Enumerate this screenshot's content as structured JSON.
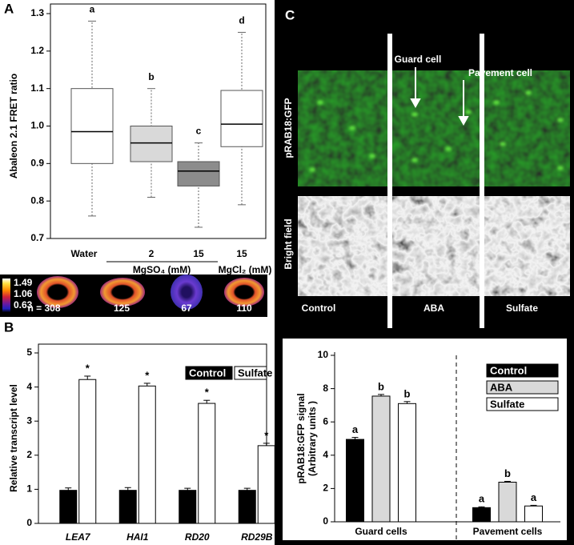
{
  "chart_data": [
    {
      "type": "box",
      "panel": "A",
      "ylabel": "Abaleon 2.1 FRET ratio",
      "ylim": [
        0.7,
        1.3
      ],
      "yticks": [
        0.7,
        0.8,
        0.9,
        {
          "value": 1,
          "label": "1.0"
        },
        1.1,
        1.2,
        1.3
      ],
      "categories": [
        "Water",
        "2",
        "15",
        "15"
      ],
      "group_labels": [
        "MgSO₄ (mM)",
        "MgCl₂ (mM)"
      ],
      "boxes": [
        {
          "low": 0.76,
          "q1": 0.9,
          "median": 0.985,
          "q3": 1.1,
          "high": 1.28,
          "color": "#ffffff"
        },
        {
          "low": 0.81,
          "q1": 0.905,
          "median": 0.955,
          "q3": 1.0,
          "high": 1.1,
          "color": "#d9d9d9"
        },
        {
          "low": 0.73,
          "q1": 0.84,
          "median": 0.88,
          "q3": 0.905,
          "high": 0.955,
          "color": "#8c8c8c"
        },
        {
          "low": 0.79,
          "q1": 0.945,
          "median": 1.005,
          "q3": 1.095,
          "high": 1.25,
          "color": "#ffffff"
        }
      ],
      "letters": [
        "a",
        "b",
        "c",
        "d"
      ],
      "colorbar_ticks": [
        1.49,
        1.06,
        0.63
      ],
      "sample_sizes": [
        {
          "value": 308,
          "label": "n = 308"
        },
        125,
        67,
        110
      ]
    },
    {
      "type": "bar",
      "panel": "B",
      "ylabel": "Relative transcript level",
      "categories": [
        "LEA7",
        "HAI1",
        "RD20",
        "RD29B"
      ],
      "series": [
        {
          "name": "Control",
          "color": "#000000",
          "values": [
            0.97,
            0.97,
            0.97,
            0.97
          ],
          "errors": [
            0.07,
            0.08,
            0.06,
            0.06
          ]
        },
        {
          "name": "Sulfate",
          "color": "#ffffff",
          "values": [
            4.22,
            4.03,
            3.52,
            2.28
          ],
          "errors": [
            0.1,
            0.08,
            0.09,
            0.07
          ],
          "labels": [
            "*",
            "*",
            "*",
            "*"
          ]
        }
      ],
      "ylim": [
        0,
        5
      ],
      "yticks": [
        0,
        1,
        2,
        3,
        4,
        5
      ],
      "legend": "top-right"
    },
    {
      "type": "bar",
      "panel": "C",
      "ylabel": [
        "pRAB18:GFP signal",
        "(Arbitrary units )"
      ],
      "categories": [
        "Guard cells",
        "Pavement cells"
      ],
      "series": [
        {
          "name": "Control",
          "color": "#000000",
          "values": [
            4.95,
            0.85
          ],
          "errors": [
            0.12,
            0.05
          ],
          "labels": [
            "a",
            "a"
          ]
        },
        {
          "name": "ABA",
          "color": "#d9d9d9",
          "values": [
            7.55,
            2.38
          ],
          "errors": [
            0.1,
            0.05
          ],
          "labels": [
            "b",
            "b"
          ]
        },
        {
          "name": "Sulfate",
          "color": "#ffffff",
          "values": [
            7.1,
            0.95
          ],
          "errors": [
            0.12,
            0.04
          ],
          "labels": [
            "b",
            "a"
          ]
        }
      ],
      "ylim": [
        0,
        10
      ],
      "yticks": [
        0,
        2,
        4,
        6,
        8,
        10
      ],
      "legend": "top-right"
    }
  ],
  "images": {
    "row_labels": [
      "pRAB18:GFP",
      "Bright field"
    ],
    "column_labels": [
      "Control",
      "ABA",
      "Sulfate"
    ],
    "annotations": [
      "Guard cell",
      "Pavement cell"
    ]
  }
}
